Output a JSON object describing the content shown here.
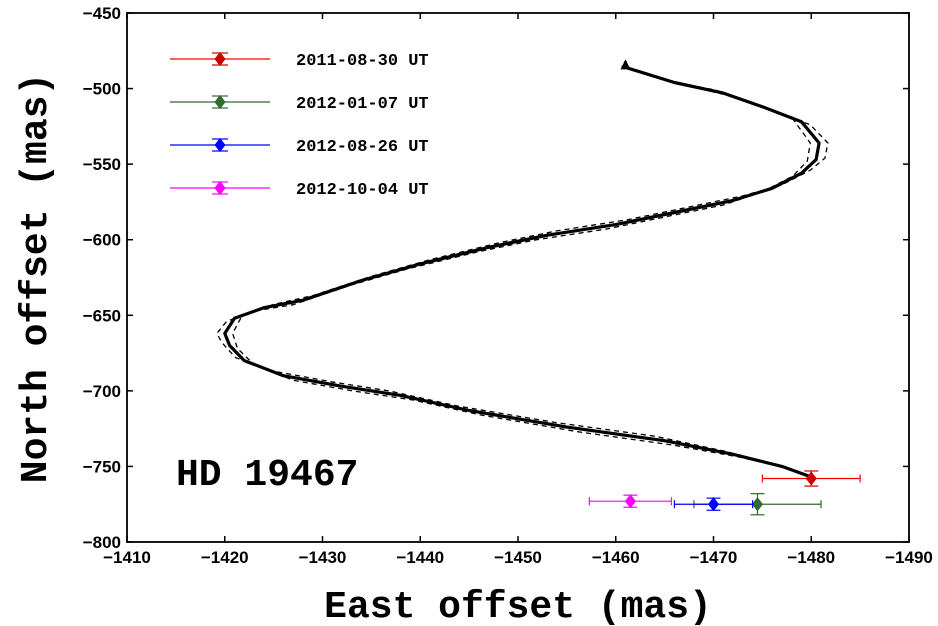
{
  "chart_data": {
    "type": "line",
    "title": "",
    "xlabel": "East offset (mas)",
    "ylabel": "North offset (mas)",
    "xlim": [
      -1410,
      -1490
    ],
    "ylim": [
      -800,
      -450
    ],
    "x_ticks": [
      -1410,
      -1420,
      -1430,
      -1440,
      -1450,
      -1460,
      -1470,
      -1480,
      -1490
    ],
    "y_ticks": [
      -450,
      -500,
      -550,
      -600,
      -650,
      -700,
      -750,
      -800
    ],
    "x_tick_labels": [
      "−1410",
      "−1420",
      "−1430",
      "−1440",
      "−1450",
      "−1460",
      "−1470",
      "−1480",
      "−1490"
    ],
    "y_tick_labels": [
      "−450",
      "−500",
      "−550",
      "−600",
      "−650",
      "−700",
      "−750",
      "−800"
    ],
    "grid": false,
    "legend_position": "top-left",
    "annotation": "HD 19467",
    "orbit_track": {
      "color": "#000000",
      "style": "solid",
      "points": [
        [
          -1480.0,
          -757
        ],
        [
          -1477,
          -750
        ],
        [
          -1472,
          -742
        ],
        [
          -1465,
          -733
        ],
        [
          -1455,
          -724
        ],
        [
          -1445,
          -713
        ],
        [
          -1438,
          -703
        ],
        [
          -1432,
          -697
        ],
        [
          -1426,
          -690
        ],
        [
          -1422,
          -680
        ],
        [
          -1420.5,
          -670
        ],
        [
          -1420,
          -662
        ],
        [
          -1421,
          -652
        ],
        [
          -1424,
          -645
        ],
        [
          -1428,
          -640
        ],
        [
          -1434,
          -627
        ],
        [
          -1440,
          -616
        ],
        [
          -1447,
          -605
        ],
        [
          -1453,
          -597
        ],
        [
          -1460,
          -590
        ],
        [
          -1466,
          -582
        ],
        [
          -1472,
          -574
        ],
        [
          -1476,
          -566
        ],
        [
          -1479,
          -556
        ],
        [
          -1480.5,
          -547
        ],
        [
          -1480.8,
          -536
        ],
        [
          -1479,
          -522
        ],
        [
          -1475,
          -512
        ],
        [
          -1471,
          -503
        ],
        [
          -1466,
          -496
        ],
        [
          -1461,
          -486
        ]
      ],
      "arrow_end": [
        -1461,
        -482
      ]
    },
    "envelope_offsets": [
      [
        0,
        0
      ],
      [
        0.5,
        1
      ],
      [
        0.8,
        2
      ],
      [
        1.0,
        3
      ],
      [
        1.1,
        3
      ],
      [
        1.2,
        3
      ],
      [
        1.2,
        3
      ],
      [
        1.1,
        3
      ],
      [
        1.0,
        3
      ],
      [
        0.9,
        2
      ],
      [
        0.8,
        2
      ],
      [
        0.8,
        0
      ],
      [
        0.8,
        -2
      ],
      [
        0.9,
        -2
      ],
      [
        1.0,
        -3
      ],
      [
        1.1,
        -3
      ],
      [
        1.1,
        -3
      ],
      [
        1.1,
        -3
      ],
      [
        1.1,
        -3
      ],
      [
        1.0,
        -3
      ],
      [
        1.0,
        -3
      ],
      [
        1.0,
        -3
      ],
      [
        0.9,
        -2
      ],
      [
        0.9,
        -2
      ],
      [
        0.9,
        -1
      ],
      [
        0.9,
        0
      ],
      [
        0.9,
        2
      ],
      [
        0.9,
        2
      ],
      [
        0.8,
        2
      ],
      [
        0.6,
        1
      ],
      [
        0.4,
        1
      ]
    ],
    "series": [
      {
        "name": "2011-08-30 UT",
        "color": "#ff0000",
        "marker_color": "#cc0000",
        "x": -1480.0,
        "y": -758,
        "x_err": 5.0,
        "y_err": 5
      },
      {
        "name": "2012-01-07 UT",
        "color": "#2f6b2f",
        "marker_color": "#2f6b2f",
        "x": -1474.5,
        "y": -775,
        "x_err": 6.5,
        "y_err": 7
      },
      {
        "name": "2012-08-26 UT",
        "color": "#0000ff",
        "marker_color": "#0000ff",
        "x": -1470.0,
        "y": -775,
        "x_err": 4.0,
        "y_err": 4
      },
      {
        "name": "2012-10-04 UT",
        "color": "#ff00ff",
        "marker_color": "#ff00ff",
        "x": -1461.5,
        "y": -773,
        "x_err": 4.2,
        "y_err": 4
      }
    ]
  }
}
